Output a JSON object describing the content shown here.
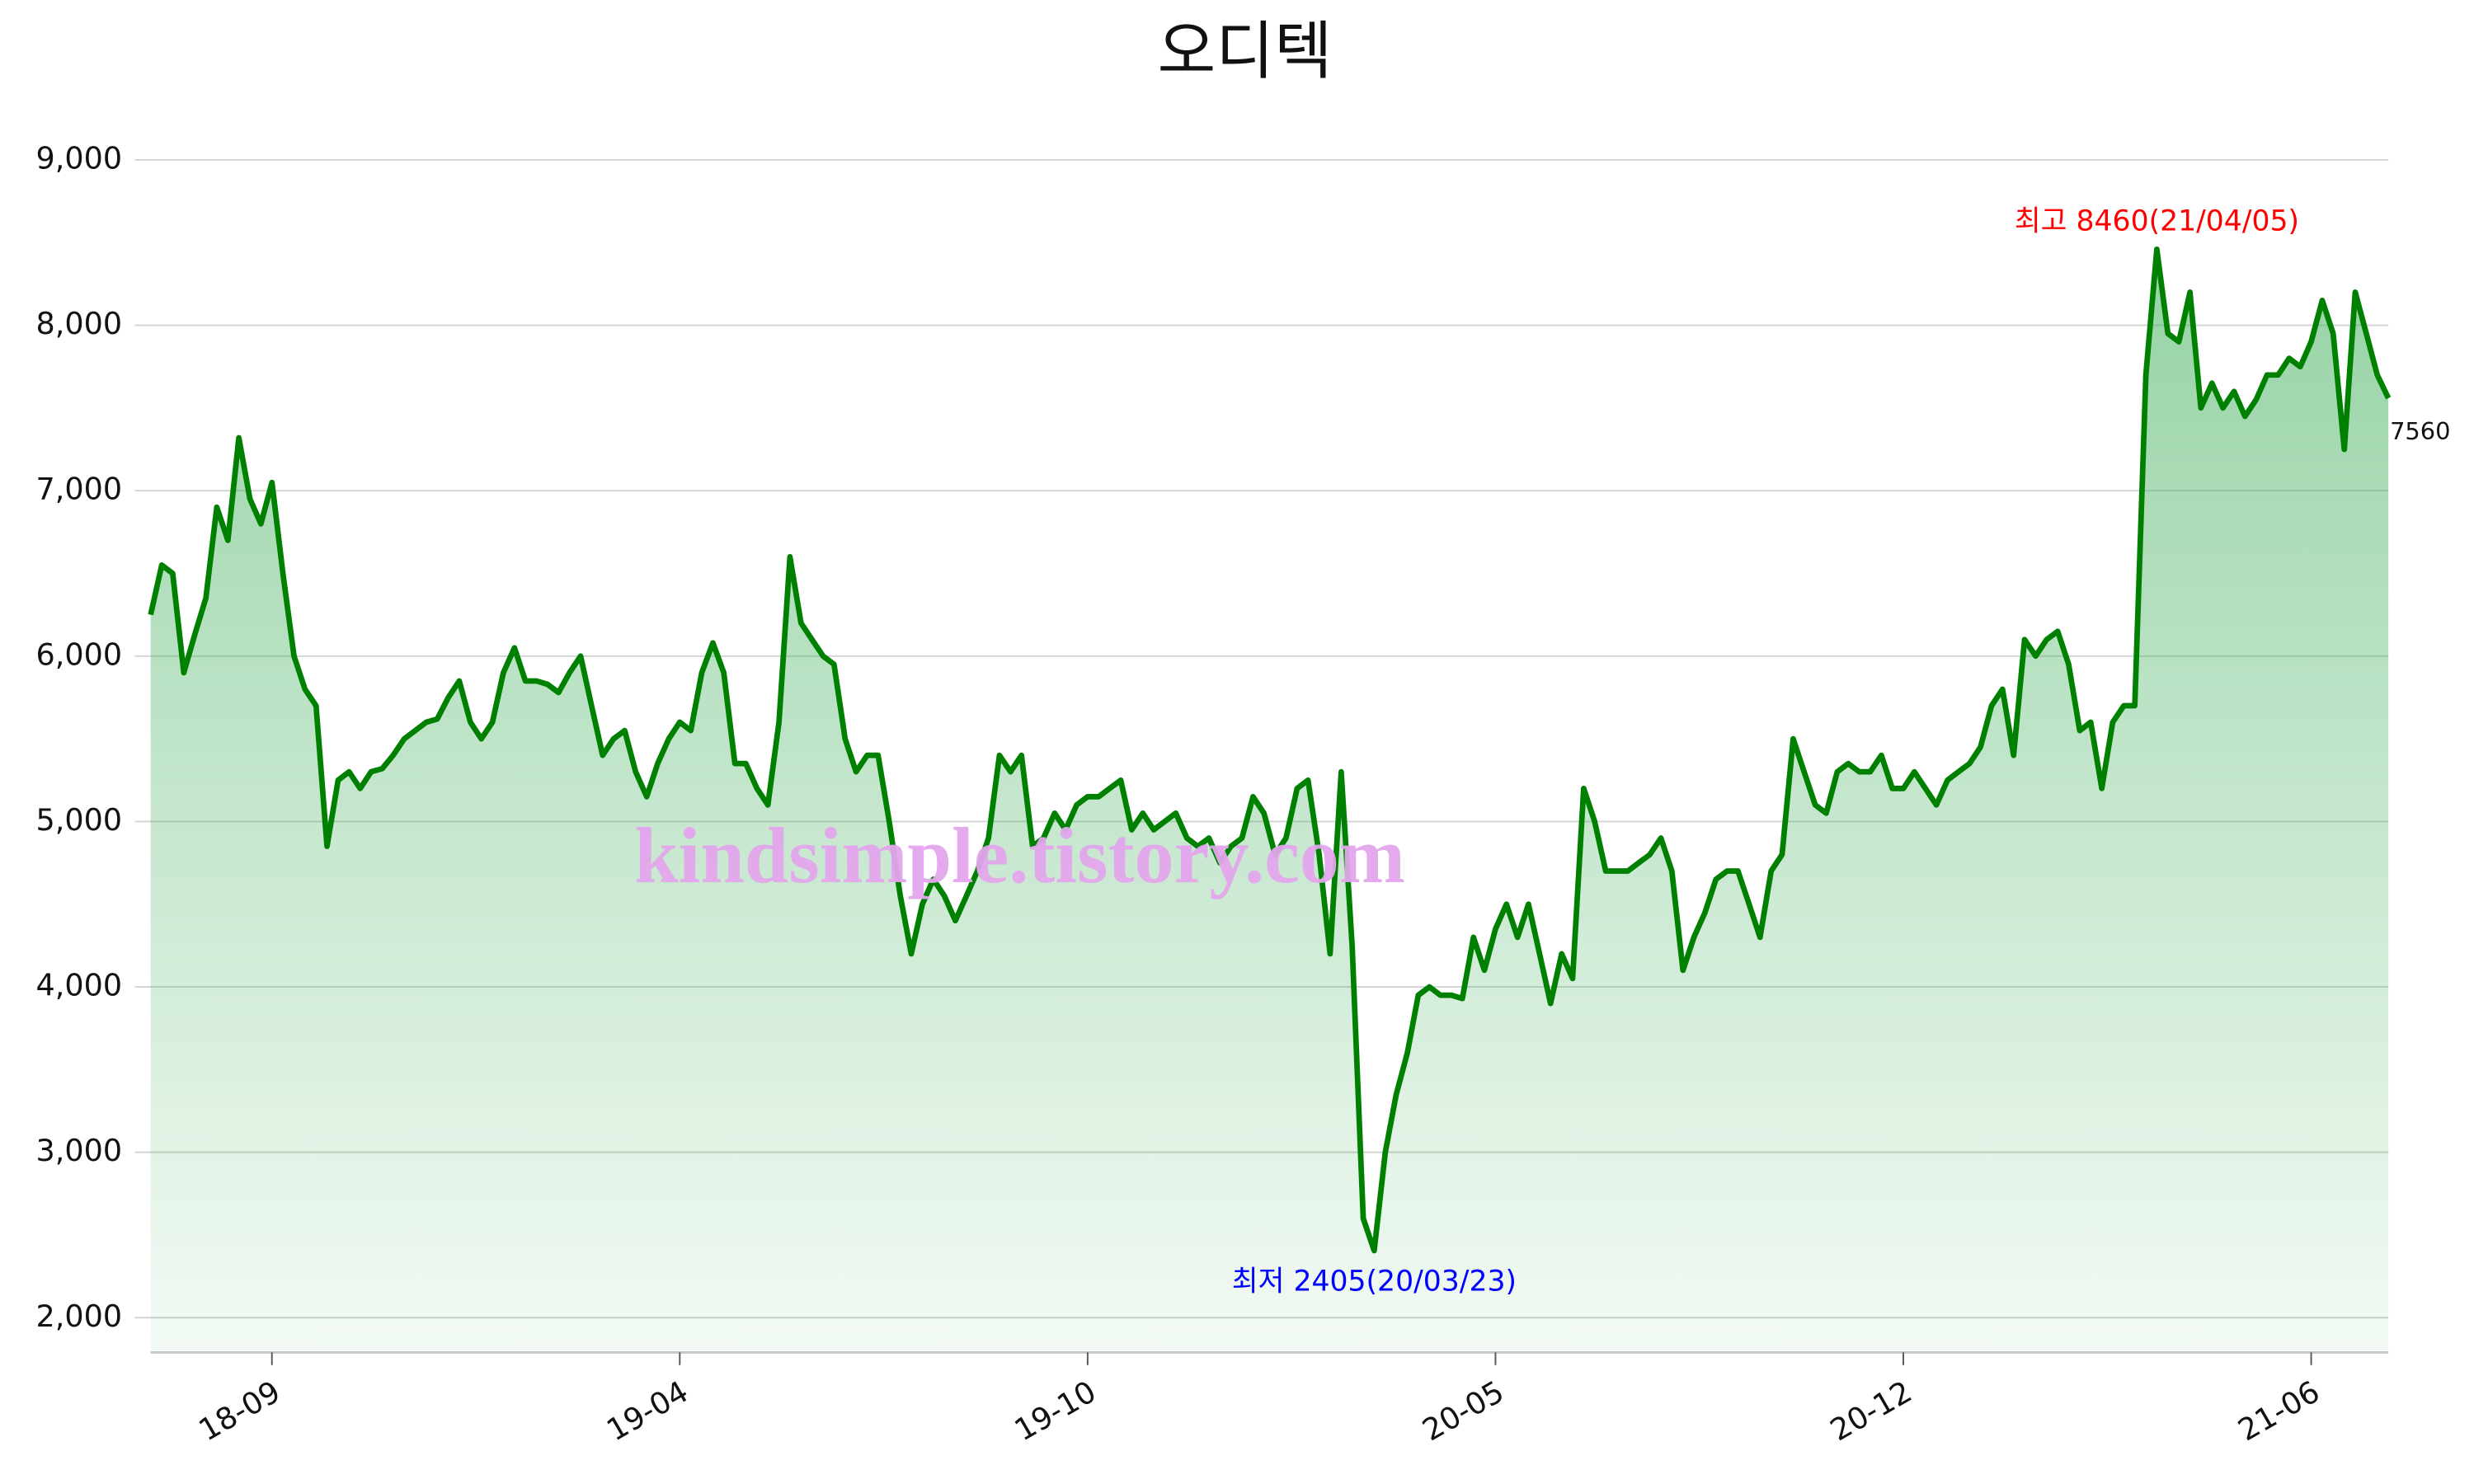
{
  "chart_data": {
    "type": "line",
    "title": "오디텍",
    "watermark": "kindsimple.tistory.com",
    "categories": [
      null,
      null,
      null,
      null,
      null,
      null,
      null,
      null,
      null,
      null,
      null,
      "18-09",
      null,
      null,
      null,
      null,
      null,
      null,
      null,
      null,
      null,
      null,
      null,
      null,
      null,
      null,
      null,
      null,
      null,
      null,
      null,
      null,
      null,
      null,
      null,
      null,
      null,
      null,
      null,
      null,
      null,
      null,
      null,
      null,
      null,
      null,
      null,
      null,
      "19-04",
      null,
      null,
      null,
      null,
      null,
      null,
      null,
      null,
      null,
      null,
      null,
      null,
      null,
      null,
      null,
      null,
      null,
      null,
      null,
      null,
      null,
      null,
      null,
      null,
      null,
      null,
      null,
      null,
      null,
      null,
      null,
      null,
      null,
      null,
      null,
      null,
      "19-10",
      null,
      null,
      null,
      null,
      null,
      null,
      null,
      null,
      null,
      null,
      null,
      null,
      null,
      null,
      null,
      null,
      null,
      null,
      null,
      null,
      null,
      null,
      null,
      null,
      null,
      null,
      null,
      null,
      null,
      null,
      null,
      null,
      null,
      null,
      null,
      null,
      "20-05",
      null,
      null,
      null,
      null,
      null,
      null,
      null,
      null,
      null,
      null,
      null,
      null,
      null,
      null,
      null,
      null,
      null,
      null,
      null,
      null,
      null,
      null,
      null,
      null,
      null,
      null,
      null,
      null,
      null,
      null,
      null,
      null,
      null,
      null,
      null,
      null,
      "20-12",
      null,
      null,
      null,
      null,
      null,
      null,
      null,
      null,
      null,
      null,
      null,
      null,
      null,
      null,
      null,
      null,
      null,
      null,
      null,
      null,
      null,
      null,
      null,
      null,
      null,
      null,
      null,
      null,
      null,
      null,
      null,
      null,
      null,
      null,
      null,
      null,
      "21-06",
      null,
      null,
      null,
      null,
      null,
      null,
      null
    ],
    "series": [
      {
        "color": "#008000",
        "fill": "#3fae5a",
        "values": [
          6250,
          6550,
          6500,
          5900,
          6130,
          6350,
          6900,
          6700,
          7320,
          6950,
          6800,
          7050,
          6500,
          6000,
          5800,
          5700,
          4850,
          5250,
          5300,
          5200,
          5300,
          5320,
          5400,
          5500,
          5550,
          5600,
          5620,
          5750,
          5850,
          5600,
          5500,
          5600,
          5900,
          6050,
          5850,
          5850,
          5830,
          5780,
          5900,
          6000,
          5700,
          5400,
          5500,
          5550,
          5300,
          5150,
          5350,
          5500,
          5600,
          5550,
          5900,
          6080,
          5900,
          5350,
          5350,
          5200,
          5100,
          5600,
          6600,
          6200,
          6100,
          6000,
          5950,
          5500,
          5300,
          5400,
          5400,
          5000,
          4550,
          4200,
          4500,
          4650,
          4550,
          4400,
          4550,
          4700,
          4900,
          5400,
          5300,
          5400,
          4850,
          4900,
          5050,
          4950,
          5100,
          5150,
          5150,
          5200,
          5250,
          4950,
          5050,
          4950,
          5000,
          5050,
          4900,
          4850,
          4900,
          4750,
          4850,
          4900,
          5150,
          5050,
          4800,
          4900,
          5200,
          5250,
          4800,
          4200,
          5300,
          4250,
          2600,
          2405,
          3000,
          3350,
          3600,
          3950,
          4000,
          3950,
          3950,
          3930,
          4300,
          4100,
          4350,
          4500,
          4300,
          4500,
          4200,
          3900,
          4200,
          4050,
          5200,
          5000,
          4700,
          4700,
          4700,
          4750,
          4800,
          4900,
          4700,
          4100,
          4300,
          4450,
          4650,
          4700,
          4700,
          4500,
          4300,
          4700,
          4800,
          5500,
          5300,
          5100,
          5050,
          5300,
          5350,
          5300,
          5300,
          5400,
          5200,
          5200,
          5300,
          5200,
          5100,
          5250,
          5300,
          5350,
          5450,
          5700,
          5800,
          5400,
          6100,
          6000,
          6100,
          6150,
          5950,
          5550,
          5600,
          5200,
          5600,
          5700,
          5700,
          7700,
          8460,
          7950,
          7900,
          8200,
          7500,
          7650,
          7500,
          7600,
          7450,
          7550,
          7700,
          7700,
          7800,
          7750,
          7900,
          8150,
          7950,
          7250,
          8200,
          7950,
          7700,
          7560
        ]
      }
    ],
    "annotations": [
      {
        "text": "최고 8460(21/04/05)",
        "color": "#ff0000"
      },
      {
        "text": "최저 2405(20/03/23)",
        "color": "#0000ff"
      }
    ],
    "ylim": [
      1790,
      9200
    ],
    "yticks": [
      {
        "value": 2000,
        "label": "2,000"
      },
      {
        "value": 3000,
        "label": "3,000"
      },
      {
        "value": 4000,
        "label": "4,000"
      },
      {
        "value": 5000,
        "label": "5,000"
      },
      {
        "value": 6000,
        "label": "6,000"
      },
      {
        "value": 7000,
        "label": "7,000"
      },
      {
        "value": 8000,
        "label": "8,000"
      },
      {
        "value": 9000,
        "label": "9,000"
      }
    ],
    "grid": true
  }
}
